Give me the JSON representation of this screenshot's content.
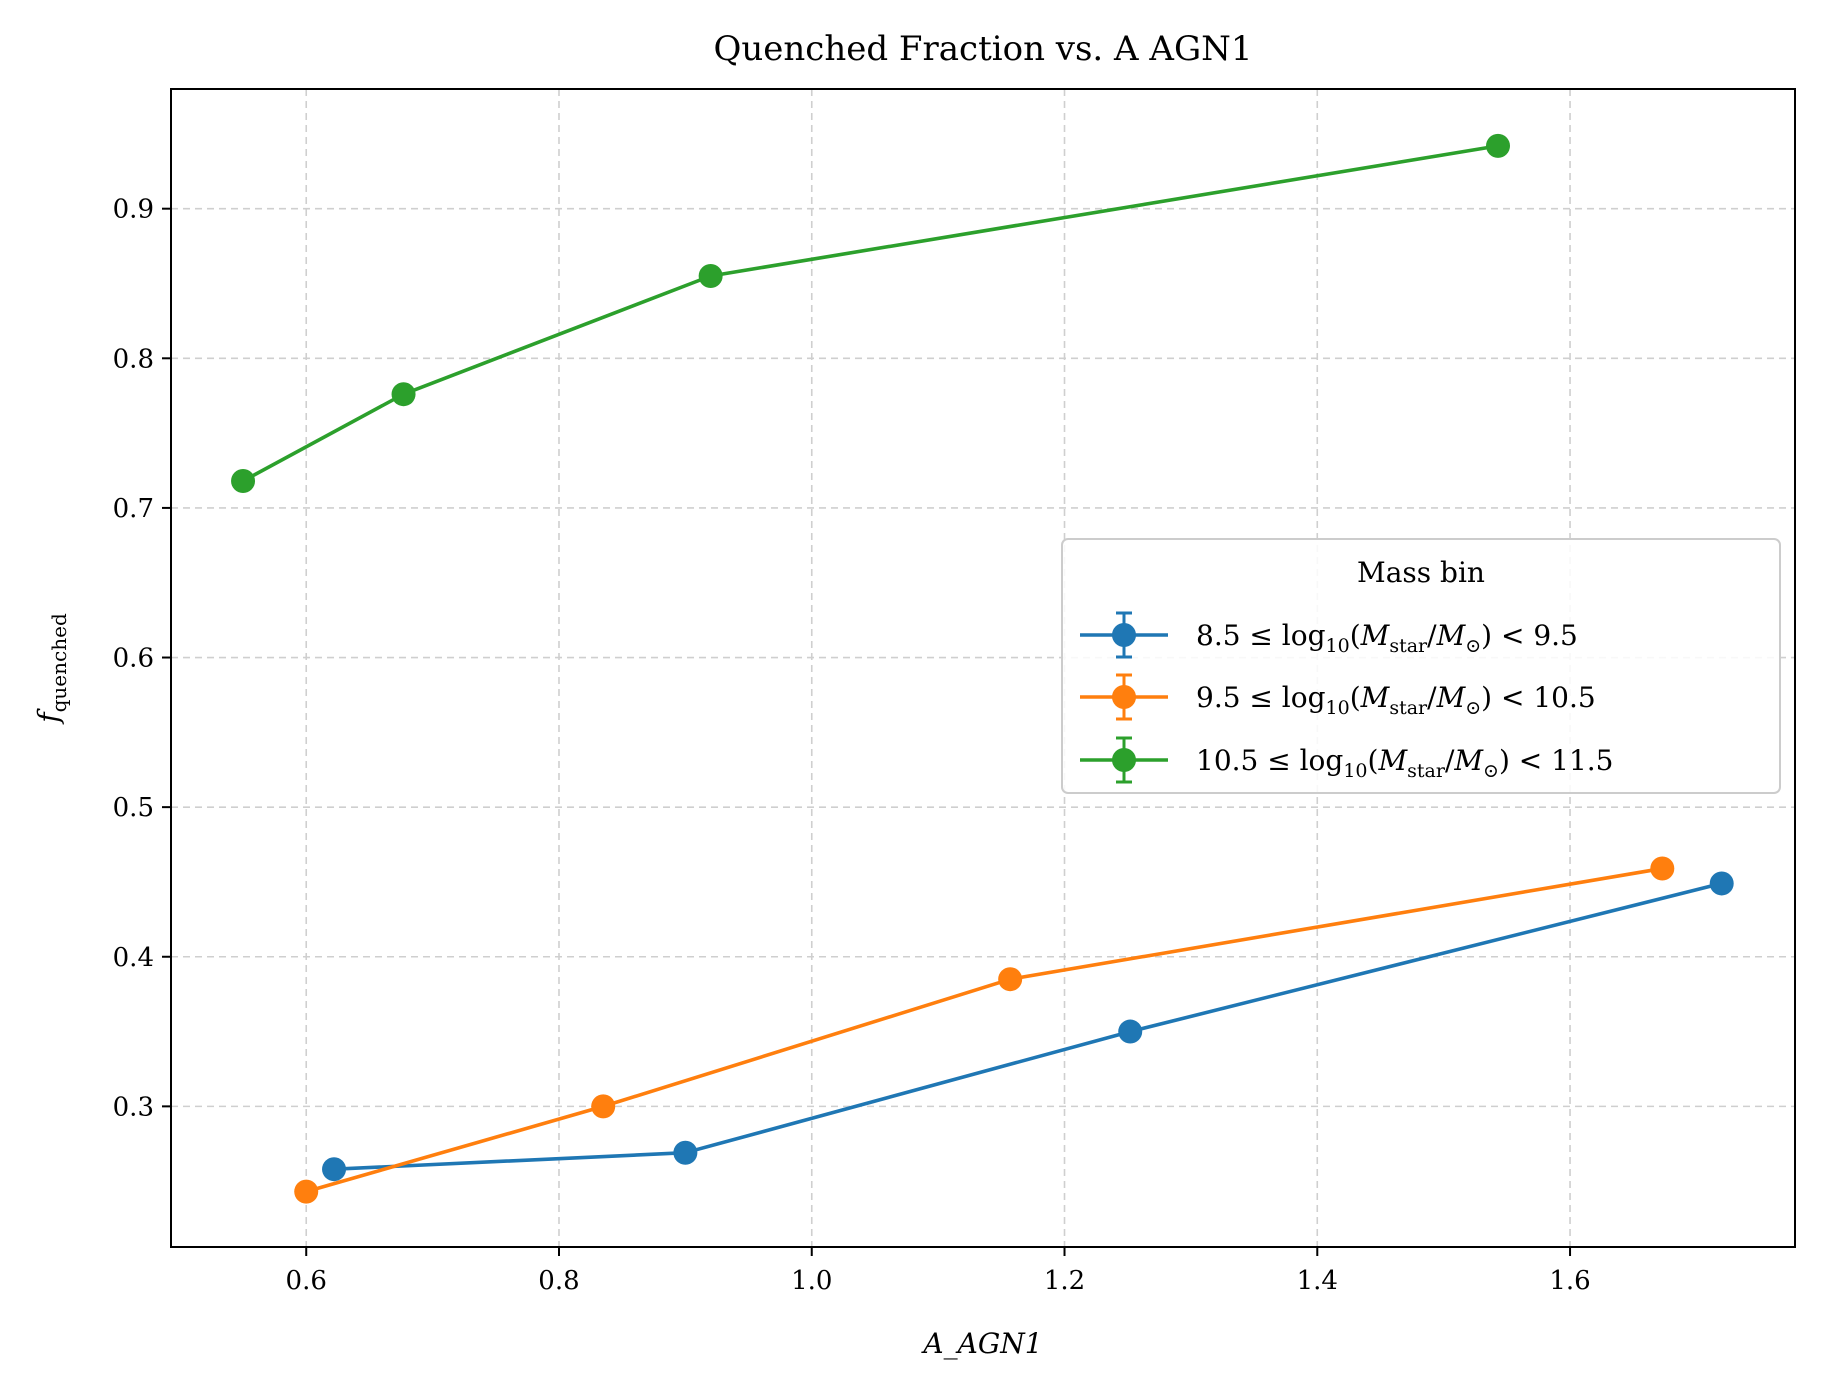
{
  "chart_data": {
    "type": "line",
    "title": "Quenched Fraction vs. A AGN1",
    "xlabel": "A_AGN1",
    "ylabel": "f_quenched",
    "ylabel_main": "f",
    "ylabel_sub": "quenched",
    "xlim": [
      0.493,
      1.778
    ],
    "ylim": [
      0.206,
      0.98
    ],
    "xticks": [
      0.6,
      0.8,
      1.0,
      1.2,
      1.4,
      1.6
    ],
    "xtick_labels": [
      "0.6",
      "0.8",
      "1.0",
      "1.2",
      "1.4",
      "1.6"
    ],
    "yticks": [
      0.3,
      0.4,
      0.5,
      0.6,
      0.7,
      0.8,
      0.9
    ],
    "ytick_labels": [
      "0.3",
      "0.4",
      "0.5",
      "0.6",
      "0.7",
      "0.8",
      "0.9"
    ],
    "grid": true,
    "legend": {
      "title": "Mass bin",
      "placement": "center-right"
    },
    "series": [
      {
        "name": "8.5 ≤ log10(Mstar/M⊙) < 9.5",
        "label_parts": {
          "lo": "8.5",
          "hi": "9.5"
        },
        "color": "#1f77b4",
        "x": [
          0.622,
          0.9,
          1.252,
          1.72
        ],
        "y": [
          0.258,
          0.269,
          0.35,
          0.449
        ]
      },
      {
        "name": "9.5 ≤ log10(Mstar/M⊙) < 10.5",
        "label_parts": {
          "lo": "9.5",
          "hi": "10.5"
        },
        "color": "#ff7f0e",
        "x": [
          0.6,
          0.835,
          1.157,
          1.673
        ],
        "y": [
          0.243,
          0.3,
          0.385,
          0.459
        ]
      },
      {
        "name": "10.5 ≤ log10(Mstar/M⊙) < 11.5",
        "label_parts": {
          "lo": "10.5",
          "hi": "11.5"
        },
        "color": "#2ca02c",
        "x": [
          0.55,
          0.677,
          0.92,
          1.543
        ],
        "y": [
          0.718,
          0.776,
          0.855,
          0.942
        ]
      }
    ]
  }
}
